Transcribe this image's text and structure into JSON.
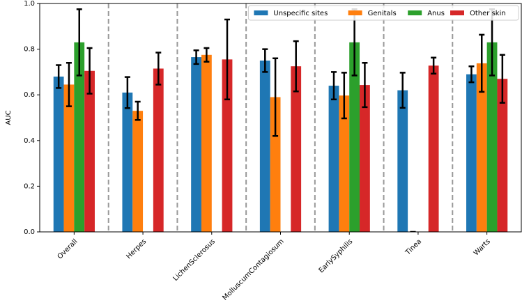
{
  "chart_data": {
    "type": "bar",
    "ylabel": "AUC",
    "categories": [
      "Overall",
      "Herpes",
      "LichenSclerosus",
      "MolluscumContagiosum",
      "EarlySyphilis",
      "Tinea",
      "Warts"
    ],
    "series": [
      {
        "name": "Unspecific sites",
        "color": "#1f77b4",
        "values": [
          0.68,
          0.61,
          0.765,
          0.75,
          0.64,
          0.62,
          0.69
        ],
        "errors": [
          0.05,
          0.068,
          0.03,
          0.05,
          0.06,
          0.077,
          0.035
        ]
      },
      {
        "name": "Genitals",
        "color": "#ff7f0e",
        "values": [
          0.645,
          0.53,
          0.775,
          0.59,
          0.597,
          0,
          0.738
        ],
        "errors": [
          0.095,
          0.04,
          0.03,
          0.17,
          0.1,
          0,
          0.125
        ]
      },
      {
        "name": "Anus",
        "color": "#2ca02c",
        "values": [
          0.83,
          null,
          null,
          null,
          0.83,
          null,
          0.83
        ],
        "errors": [
          0.145,
          null,
          null,
          null,
          0.145,
          null,
          0.145
        ]
      },
      {
        "name": "Other skin",
        "color": "#d62728",
        "values": [
          0.705,
          0.715,
          0.755,
          0.725,
          0.643,
          0.728,
          0.67
        ],
        "errors": [
          0.1,
          0.07,
          0.175,
          0.11,
          0.097,
          0.035,
          0.105
        ]
      }
    ],
    "ylim": [
      0,
      1
    ],
    "yticks": [
      {
        "value": 0,
        "label": "0.0"
      },
      0.2,
      0.4,
      0.6,
      0.8,
      {
        "value": 1,
        "label": "1.0"
      }
    ],
    "legend": "upper right",
    "group_separators": true
  }
}
